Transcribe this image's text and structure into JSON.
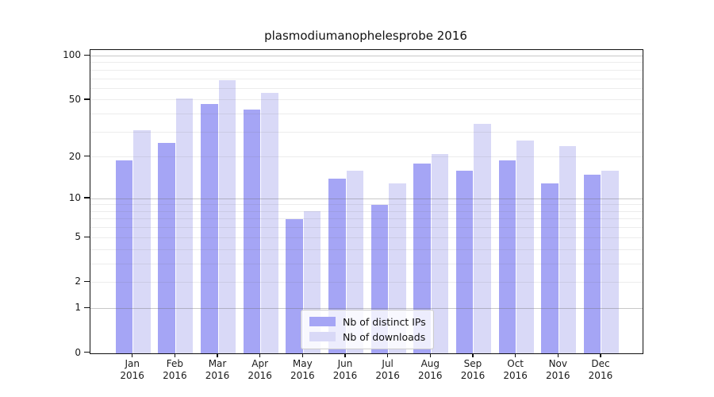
{
  "title": "plasmodiumanophelesprobe 2016",
  "chart_data": {
    "type": "bar",
    "title": "plasmodiumanophelesprobe 2016",
    "categories": [
      "Jan",
      "Feb",
      "Mar",
      "Apr",
      "May",
      "Jun",
      "Jul",
      "Aug",
      "Sep",
      "Oct",
      "Nov",
      "Dec"
    ],
    "category_year": "2016",
    "series": [
      {
        "name": "Nb of distinct IPs",
        "color": "#a5a5f5",
        "values": [
          19,
          25,
          47,
          43,
          7,
          14,
          9,
          18,
          16,
          19,
          13,
          15
        ]
      },
      {
        "name": "Nb of downloads",
        "color": "#d9d9f7",
        "values": [
          31,
          51,
          68,
          56,
          8,
          16,
          13,
          21,
          34,
          26,
          24,
          16
        ]
      }
    ],
    "xlabel": "",
    "ylabel": "",
    "yscale": "log1p",
    "ylim": [
      0,
      110
    ],
    "y_tick_labels": [
      "100",
      "50",
      "20",
      "10",
      "5",
      "2",
      "1",
      "0"
    ],
    "y_tick_values": [
      100,
      50,
      20,
      10,
      5,
      2,
      1,
      0
    ],
    "y_major_gridlines": [
      100,
      10,
      1
    ],
    "y_minor_gridlines": [
      90,
      80,
      70,
      60,
      50,
      40,
      30,
      20,
      9,
      8,
      7,
      6,
      5,
      4,
      3,
      2
    ],
    "grid": true,
    "legend_position": "lower center"
  },
  "legend": {
    "items": [
      {
        "label": "Nb of distinct IPs",
        "color": "#a5a5f5"
      },
      {
        "label": "Nb of downloads",
        "color": "#d9d9f7"
      }
    ]
  },
  "colors": {
    "bar_distinct_ips": "#a5a5f5",
    "bar_downloads": "#d9d9f7",
    "major_gridline": "#cfcfcf",
    "minor_gridline": "#ececec",
    "axis": "#111111",
    "background": "#ffffff"
  }
}
